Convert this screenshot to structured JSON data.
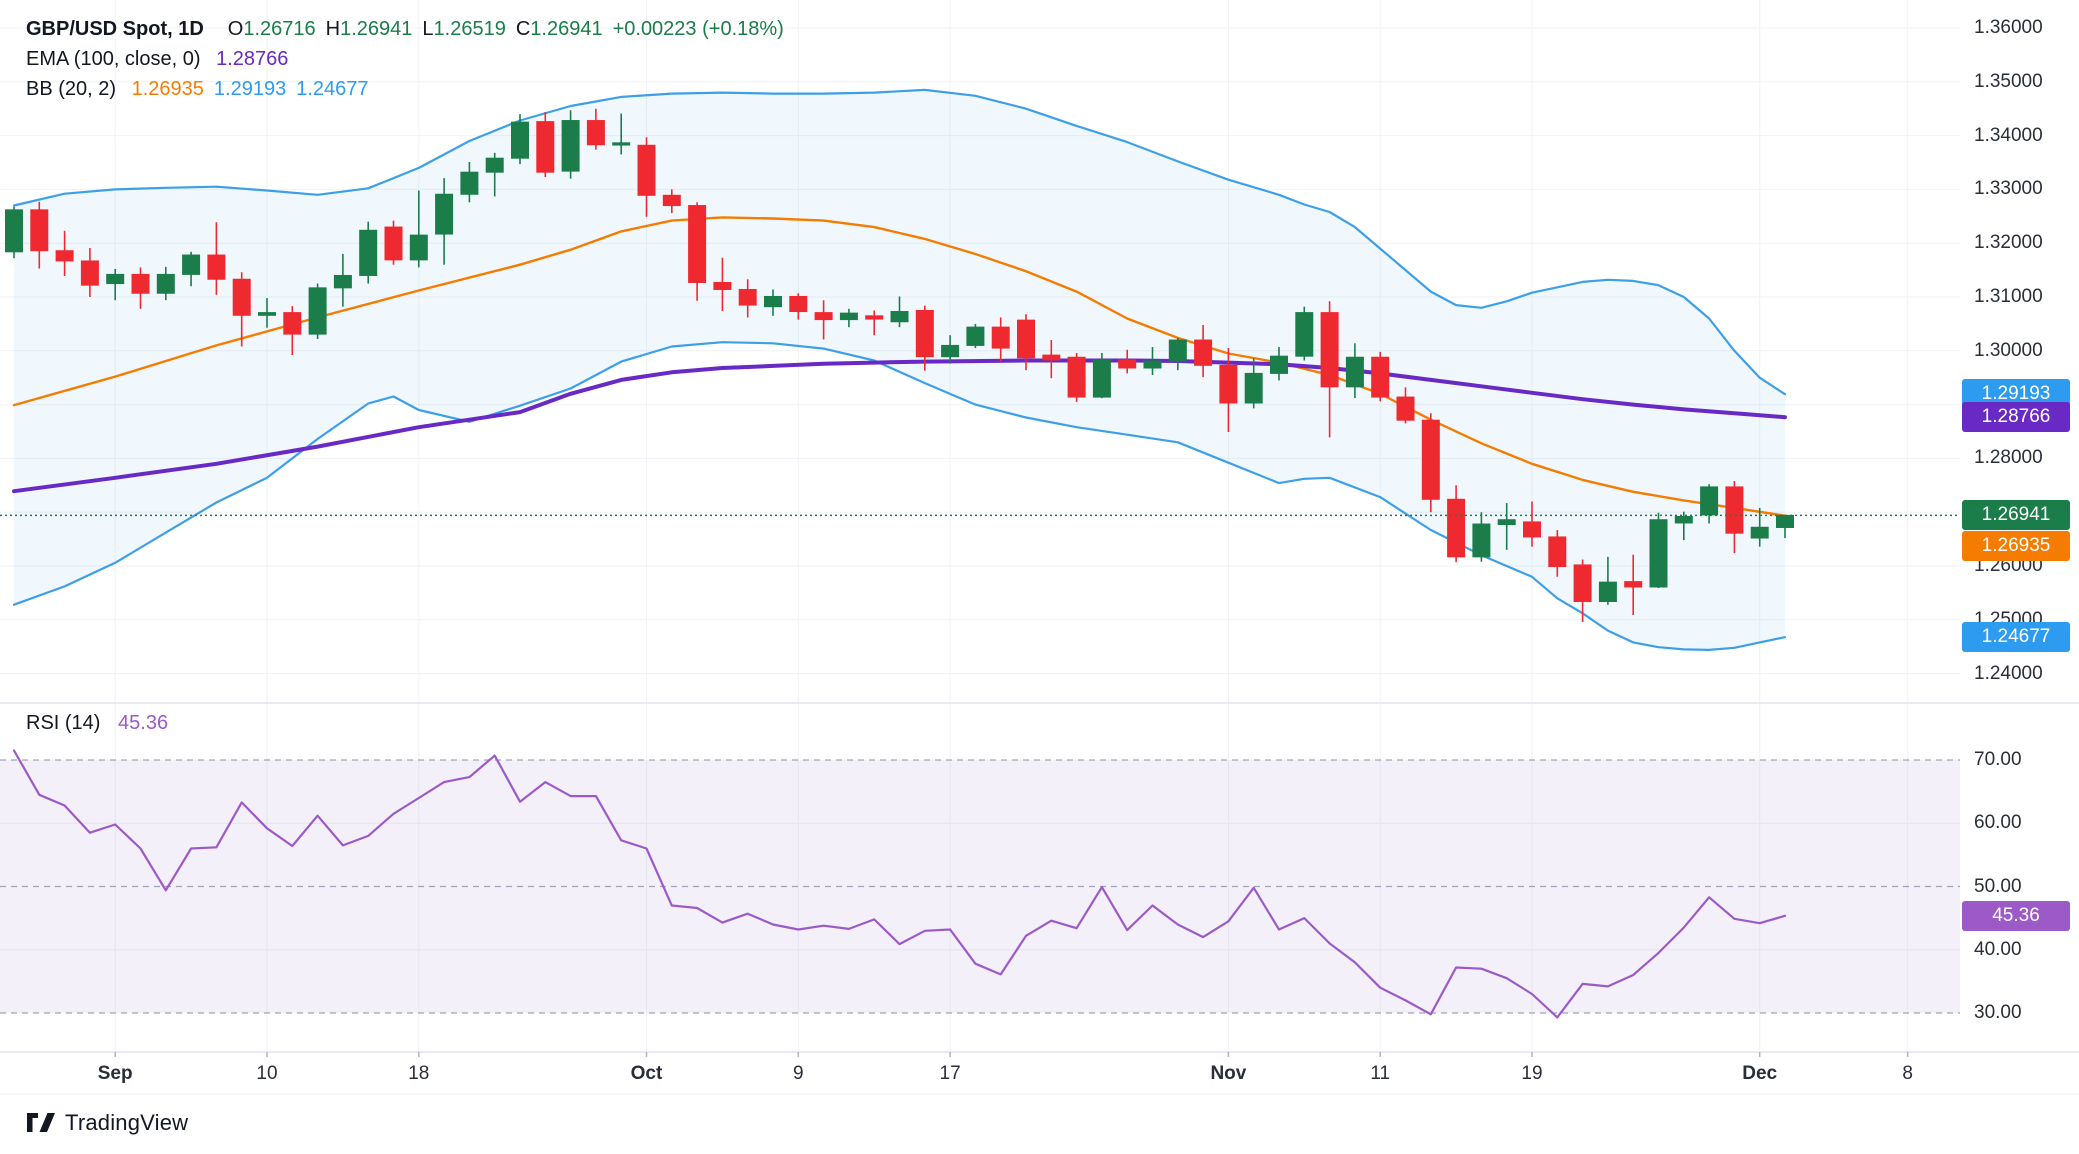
{
  "header": {
    "symbol": "GBP/USD Spot, 1D",
    "ohlc": [
      {
        "label": "O",
        "value": "1.26716"
      },
      {
        "label": "H",
        "value": "1.26941"
      },
      {
        "label": "L",
        "value": "1.26519"
      },
      {
        "label": "C",
        "value": "1.26941"
      }
    ],
    "change": "+0.00223 (+0.18%)",
    "ema_label": "EMA (100, close, 0)",
    "ema_value": "1.28766",
    "bb_label": "BB (20, 2)",
    "bb_values": [
      "1.26935",
      "1.29193",
      "1.24677"
    ],
    "rsi_label": "RSI (14)",
    "rsi_value": "45.36"
  },
  "colors": {
    "up": "#1a7d4a",
    "down": "#ee2a30",
    "bb_band": "#3d9fe8",
    "bb_basis": "#f57c00",
    "ema": "#6929c4",
    "rsi_line": "#9c5ac9",
    "rsi_badge": "#9c5ac9",
    "badge_blue": "#2d9bef",
    "badge_purple": "#6929c4",
    "badge_green": "#1a7d4a",
    "badge_orange": "#f57c00",
    "grid": "#f0f2f6",
    "pane_border": "#e0e3eb",
    "axis_text": "#2a2e39",
    "dashed_guide": "#8b8fa3",
    "current_price_line": "#1a7d4a",
    "bb_fill": "rgba(62,160,233,0.08)",
    "rsi_fill": "rgba(126,87,194,0.09)",
    "logo": "#131722"
  },
  "price_axis": {
    "ticks": [
      "1.36000",
      "1.35000",
      "1.34000",
      "1.33000",
      "1.32000",
      "1.31000",
      "1.30000",
      "1.28000",
      "1.26000",
      "1.25000",
      "1.24000"
    ],
    "tick_prices": [
      1.36,
      1.35,
      1.34,
      1.33,
      1.32,
      1.31,
      1.3,
      1.28,
      1.26,
      1.25,
      1.24
    ]
  },
  "rsi_axis": {
    "ticks": [
      "70.00",
      "60.00",
      "50.00",
      "40.00",
      "30.00"
    ],
    "tick_values": [
      70,
      60,
      50,
      40,
      30
    ]
  },
  "badges": [
    {
      "text": "1.29193",
      "color_key": "badge_blue",
      "price": 1.29193,
      "pane": "price"
    },
    {
      "text": "1.28766",
      "color_key": "badge_purple",
      "price": 1.28766,
      "pane": "price"
    },
    {
      "text": "1.26941",
      "color_key": "badge_green",
      "price": 1.26941,
      "pane": "price"
    },
    {
      "text": "1.26935",
      "color_key": "badge_orange",
      "price": 1.26935,
      "pane": "price",
      "offset_below": true
    },
    {
      "text": "1.24677",
      "color_key": "badge_blue",
      "price": 1.24677,
      "pane": "price"
    },
    {
      "text": "45.36",
      "color_key": "badge_purple_rsi",
      "value": 45.36,
      "pane": "rsi"
    }
  ],
  "time_axis": {
    "labels": [
      {
        "text": "Sep",
        "i": 4,
        "bold": true
      },
      {
        "text": "10",
        "i": 10,
        "bold": false
      },
      {
        "text": "18",
        "i": 16,
        "bold": false
      },
      {
        "text": "Oct",
        "i": 25,
        "bold": true
      },
      {
        "text": "9",
        "i": 31,
        "bold": false
      },
      {
        "text": "17",
        "i": 37,
        "bold": false
      },
      {
        "text": "Nov",
        "i": 48,
        "bold": true
      },
      {
        "text": "11",
        "i": 54,
        "bold": false
      },
      {
        "text": "19",
        "i": 60,
        "bold": false
      },
      {
        "text": "Dec",
        "i": 69,
        "bold": true
      },
      {
        "text": "8",
        "i": 74.85,
        "bold": false
      }
    ]
  },
  "watermark": "TradingView",
  "chart_data": {
    "type": "candlestick",
    "title": "GBP/USD Spot, 1D",
    "price_range_visible": [
      1.2345,
      1.3605
    ],
    "rsi_range_visible": [
      23,
      79
    ],
    "rsi_guides": [
      70,
      50,
      30
    ],
    "rsi_soft_grid": [
      60,
      40
    ],
    "current_close": 1.26941,
    "candles_ohlc": [
      [
        1.3184,
        1.3268,
        1.3172,
        1.3262
      ],
      [
        1.3262,
        1.3277,
        1.3153,
        1.3186
      ],
      [
        1.3186,
        1.3223,
        1.3139,
        1.3167
      ],
      [
        1.3167,
        1.3191,
        1.31,
        1.3122
      ],
      [
        1.3125,
        1.3152,
        1.3094,
        1.3142
      ],
      [
        1.3142,
        1.3155,
        1.3078,
        1.3107
      ],
      [
        1.3107,
        1.3156,
        1.3094,
        1.3142
      ],
      [
        1.3142,
        1.3184,
        1.312,
        1.3178
      ],
      [
        1.3178,
        1.3239,
        1.3104,
        1.3133
      ],
      [
        1.3133,
        1.3146,
        1.3008,
        1.3066
      ],
      [
        1.3066,
        1.3098,
        1.3043,
        1.3071
      ],
      [
        1.3071,
        1.3083,
        1.2992,
        1.3031
      ],
      [
        1.3031,
        1.3125,
        1.3022,
        1.3117
      ],
      [
        1.3117,
        1.318,
        1.3082,
        1.314
      ],
      [
        1.314,
        1.324,
        1.3125,
        1.3224
      ],
      [
        1.323,
        1.3242,
        1.316,
        1.3169
      ],
      [
        1.3169,
        1.3298,
        1.3155,
        1.3215
      ],
      [
        1.3217,
        1.3321,
        1.316,
        1.3291
      ],
      [
        1.3291,
        1.3351,
        1.3276,
        1.3332
      ],
      [
        1.3332,
        1.3368,
        1.3287,
        1.3358
      ],
      [
        1.3358,
        1.344,
        1.3347,
        1.3425
      ],
      [
        1.3426,
        1.3444,
        1.3323,
        1.3332
      ],
      [
        1.3334,
        1.3447,
        1.332,
        1.3428
      ],
      [
        1.3428,
        1.345,
        1.3374,
        1.3383
      ],
      [
        1.3383,
        1.3441,
        1.3365,
        1.3386
      ],
      [
        1.3382,
        1.3397,
        1.3249,
        1.3289
      ],
      [
        1.3289,
        1.33,
        1.3256,
        1.327
      ],
      [
        1.327,
        1.3276,
        1.3093,
        1.3127
      ],
      [
        1.3127,
        1.3173,
        1.3074,
        1.3114
      ],
      [
        1.3114,
        1.3133,
        1.3062,
        1.3085
      ],
      [
        1.3082,
        1.3114,
        1.3065,
        1.3101
      ],
      [
        1.3101,
        1.3107,
        1.3058,
        1.3073
      ],
      [
        1.3071,
        1.3094,
        1.3021,
        1.3058
      ],
      [
        1.3058,
        1.3078,
        1.3044,
        1.307
      ],
      [
        1.3065,
        1.3075,
        1.3029,
        1.3059
      ],
      [
        1.3054,
        1.3101,
        1.3044,
        1.3073
      ],
      [
        1.3075,
        1.3084,
        1.2963,
        1.2989
      ],
      [
        1.2989,
        1.3029,
        1.2976,
        1.301
      ],
      [
        1.301,
        1.305,
        1.3005,
        1.3044
      ],
      [
        1.3044,
        1.3062,
        1.298,
        1.3005
      ],
      [
        1.3057,
        1.3068,
        1.2964,
        1.2987
      ],
      [
        1.2992,
        1.302,
        1.2949,
        1.2983
      ],
      [
        1.2988,
        1.2996,
        1.2905,
        1.2914
      ],
      [
        1.2914,
        1.2996,
        1.2912,
        1.2983
      ],
      [
        1.2983,
        1.3002,
        1.2958,
        1.2968
      ],
      [
        1.2968,
        1.3007,
        1.2955,
        1.2981
      ],
      [
        1.2981,
        1.3024,
        1.2964,
        1.302
      ],
      [
        1.302,
        1.3048,
        1.2951,
        1.2973
      ],
      [
        1.2973,
        1.3005,
        1.2849,
        1.2903
      ],
      [
        1.2903,
        1.2986,
        1.2893,
        1.2958
      ],
      [
        1.2958,
        1.3007,
        1.2945,
        1.299
      ],
      [
        1.299,
        1.3082,
        1.2982,
        1.3071
      ],
      [
        1.3071,
        1.3092,
        1.2839,
        1.2933
      ],
      [
        1.2933,
        1.3014,
        1.2912,
        1.2988
      ],
      [
        1.2988,
        1.2998,
        1.2906,
        1.2914
      ],
      [
        1.2914,
        1.2932,
        1.2865,
        1.2871
      ],
      [
        1.2871,
        1.2884,
        1.27,
        1.2724
      ],
      [
        1.2724,
        1.275,
        1.2607,
        1.2617
      ],
      [
        1.2617,
        1.27,
        1.2608,
        1.2678
      ],
      [
        1.2677,
        1.2717,
        1.263,
        1.2686
      ],
      [
        1.2682,
        1.272,
        1.2636,
        1.2654
      ],
      [
        1.2654,
        1.2667,
        1.258,
        1.2599
      ],
      [
        1.2602,
        1.2612,
        1.2496,
        1.2534
      ],
      [
        1.2534,
        1.2617,
        1.2528,
        1.257
      ],
      [
        1.2571,
        1.2621,
        1.2509,
        1.2561
      ],
      [
        1.2561,
        1.2699,
        1.2559,
        1.2686
      ],
      [
        1.268,
        1.2701,
        1.2648,
        1.2692
      ],
      [
        1.2695,
        1.2752,
        1.2679,
        1.2747
      ],
      [
        1.2747,
        1.2758,
        1.2624,
        1.2661
      ],
      [
        1.2652,
        1.2708,
        1.2636,
        1.2672
      ],
      [
        1.26716,
        1.26941,
        1.26519,
        1.26941
      ]
    ],
    "indicators": {
      "bb_upper": [
        [
          0,
          1.327
        ],
        [
          2,
          1.3292
        ],
        [
          4,
          1.33
        ],
        [
          6,
          1.3303
        ],
        [
          8,
          1.3305
        ],
        [
          10,
          1.3298
        ],
        [
          12,
          1.329
        ],
        [
          14,
          1.3302
        ],
        [
          16,
          1.334
        ],
        [
          18,
          1.339
        ],
        [
          20,
          1.3428
        ],
        [
          22,
          1.3455
        ],
        [
          24,
          1.3472
        ],
        [
          26,
          1.3478
        ],
        [
          28,
          1.348
        ],
        [
          30,
          1.3478
        ],
        [
          32,
          1.3478
        ],
        [
          34,
          1.348
        ],
        [
          36,
          1.3485
        ],
        [
          38,
          1.3474
        ],
        [
          40,
          1.345
        ],
        [
          42,
          1.3418
        ],
        [
          44,
          1.3388
        ],
        [
          46,
          1.3352
        ],
        [
          48,
          1.3318
        ],
        [
          50,
          1.329
        ],
        [
          51,
          1.3272
        ],
        [
          52,
          1.3258
        ],
        [
          53,
          1.323
        ],
        [
          54,
          1.319
        ],
        [
          55,
          1.315
        ],
        [
          56,
          1.311
        ],
        [
          57,
          1.3085
        ],
        [
          58,
          1.308
        ],
        [
          59,
          1.3092
        ],
        [
          60,
          1.3108
        ],
        [
          61,
          1.3118
        ],
        [
          62,
          1.3128
        ],
        [
          63,
          1.3132
        ],
        [
          64,
          1.313
        ],
        [
          65,
          1.3122
        ],
        [
          66,
          1.31
        ],
        [
          67,
          1.306
        ],
        [
          68,
          1.3
        ],
        [
          69,
          1.295
        ],
        [
          70,
          1.29193
        ]
      ],
      "bb_basis": [
        [
          0,
          1.2899
        ],
        [
          4,
          1.2952
        ],
        [
          8,
          1.301
        ],
        [
          12,
          1.3062
        ],
        [
          16,
          1.3112
        ],
        [
          20,
          1.316
        ],
        [
          22,
          1.3188
        ],
        [
          24,
          1.3222
        ],
        [
          26,
          1.3242
        ],
        [
          28,
          1.3248
        ],
        [
          30,
          1.3246
        ],
        [
          32,
          1.3242
        ],
        [
          34,
          1.323
        ],
        [
          36,
          1.3208
        ],
        [
          38,
          1.318
        ],
        [
          40,
          1.3148
        ],
        [
          42,
          1.311
        ],
        [
          44,
          1.306
        ],
        [
          46,
          1.3024
        ],
        [
          48,
          1.2995
        ],
        [
          50,
          1.2978
        ],
        [
          52,
          1.2955
        ],
        [
          54,
          1.292
        ],
        [
          56,
          1.2872
        ],
        [
          58,
          1.2828
        ],
        [
          60,
          1.279
        ],
        [
          62,
          1.276
        ],
        [
          64,
          1.2738
        ],
        [
          66,
          1.2722
        ],
        [
          68,
          1.2708
        ],
        [
          70,
          1.26935
        ]
      ],
      "bb_lower": [
        [
          0,
          1.2528
        ],
        [
          2,
          1.2562
        ],
        [
          4,
          1.2606
        ],
        [
          6,
          1.2662
        ],
        [
          8,
          1.2718
        ],
        [
          10,
          1.2764
        ],
        [
          12,
          1.2836
        ],
        [
          14,
          1.2902
        ],
        [
          15,
          1.2915
        ],
        [
          16,
          1.289
        ],
        [
          18,
          1.2868
        ],
        [
          20,
          1.2898
        ],
        [
          22,
          1.293
        ],
        [
          24,
          1.298
        ],
        [
          26,
          1.3008
        ],
        [
          28,
          1.3016
        ],
        [
          30,
          1.3014
        ],
        [
          32,
          1.3004
        ],
        [
          34,
          1.2982
        ],
        [
          36,
          1.294
        ],
        [
          38,
          1.29
        ],
        [
          40,
          1.2876
        ],
        [
          42,
          1.2858
        ],
        [
          44,
          1.2844
        ],
        [
          46,
          1.283
        ],
        [
          48,
          1.2792
        ],
        [
          50,
          1.2754
        ],
        [
          51,
          1.2762
        ],
        [
          52,
          1.2764
        ],
        [
          54,
          1.2728
        ],
        [
          56,
          1.2667
        ],
        [
          58,
          1.262
        ],
        [
          60,
          1.258
        ],
        [
          61,
          1.254
        ],
        [
          62,
          1.2512
        ],
        [
          63,
          1.248
        ],
        [
          64,
          1.2458
        ],
        [
          65,
          1.2449
        ],
        [
          66,
          1.2445
        ],
        [
          67,
          1.2444
        ],
        [
          68,
          1.2448
        ],
        [
          69,
          1.2458
        ],
        [
          70,
          1.24677
        ]
      ],
      "ema100": [
        [
          0,
          1.2739
        ],
        [
          4,
          1.2764
        ],
        [
          8,
          1.279
        ],
        [
          12,
          1.2822
        ],
        [
          16,
          1.2858
        ],
        [
          18,
          1.2872
        ],
        [
          20,
          1.2886
        ],
        [
          22,
          1.292
        ],
        [
          24,
          1.2946
        ],
        [
          26,
          1.296
        ],
        [
          28,
          1.2968
        ],
        [
          30,
          1.2972
        ],
        [
          32,
          1.2976
        ],
        [
          34,
          1.2978
        ],
        [
          36,
          1.298
        ],
        [
          40,
          1.2982
        ],
        [
          44,
          1.2982
        ],
        [
          46,
          1.2981
        ],
        [
          48,
          1.2978
        ],
        [
          50,
          1.2975
        ],
        [
          52,
          1.2968
        ],
        [
          54,
          1.2958
        ],
        [
          56,
          1.2946
        ],
        [
          58,
          1.2934
        ],
        [
          60,
          1.2922
        ],
        [
          62,
          1.291
        ],
        [
          64,
          1.29
        ],
        [
          66,
          1.2891
        ],
        [
          68,
          1.2884
        ],
        [
          70,
          1.28766
        ]
      ]
    },
    "rsi": [
      71.5,
      64.5,
      62.8,
      58.5,
      59.8,
      56.0,
      49.4,
      56.0,
      56.2,
      63.3,
      59.2,
      56.4,
      61.2,
      56.5,
      58.0,
      61.5,
      64.0,
      66.5,
      67.3,
      70.7,
      63.4,
      66.5,
      64.3,
      64.3,
      57.3,
      56.0,
      47.0,
      46.6,
      44.3,
      45.7,
      44.0,
      43.2,
      43.8,
      43.3,
      44.8,
      40.9,
      43.0,
      43.2,
      37.8,
      36.1,
      42.2,
      44.6,
      43.4,
      49.9,
      43.1,
      47.0,
      44.0,
      42.0,
      44.5,
      49.8,
      43.2,
      45.0,
      41.0,
      38.0,
      34.0,
      32.0,
      29.8,
      37.2,
      37.0,
      35.5,
      33.0,
      29.3,
      34.6,
      34.2,
      36.0,
      39.5,
      43.5,
      48.3,
      44.9,
      44.2,
      45.36
    ]
  }
}
